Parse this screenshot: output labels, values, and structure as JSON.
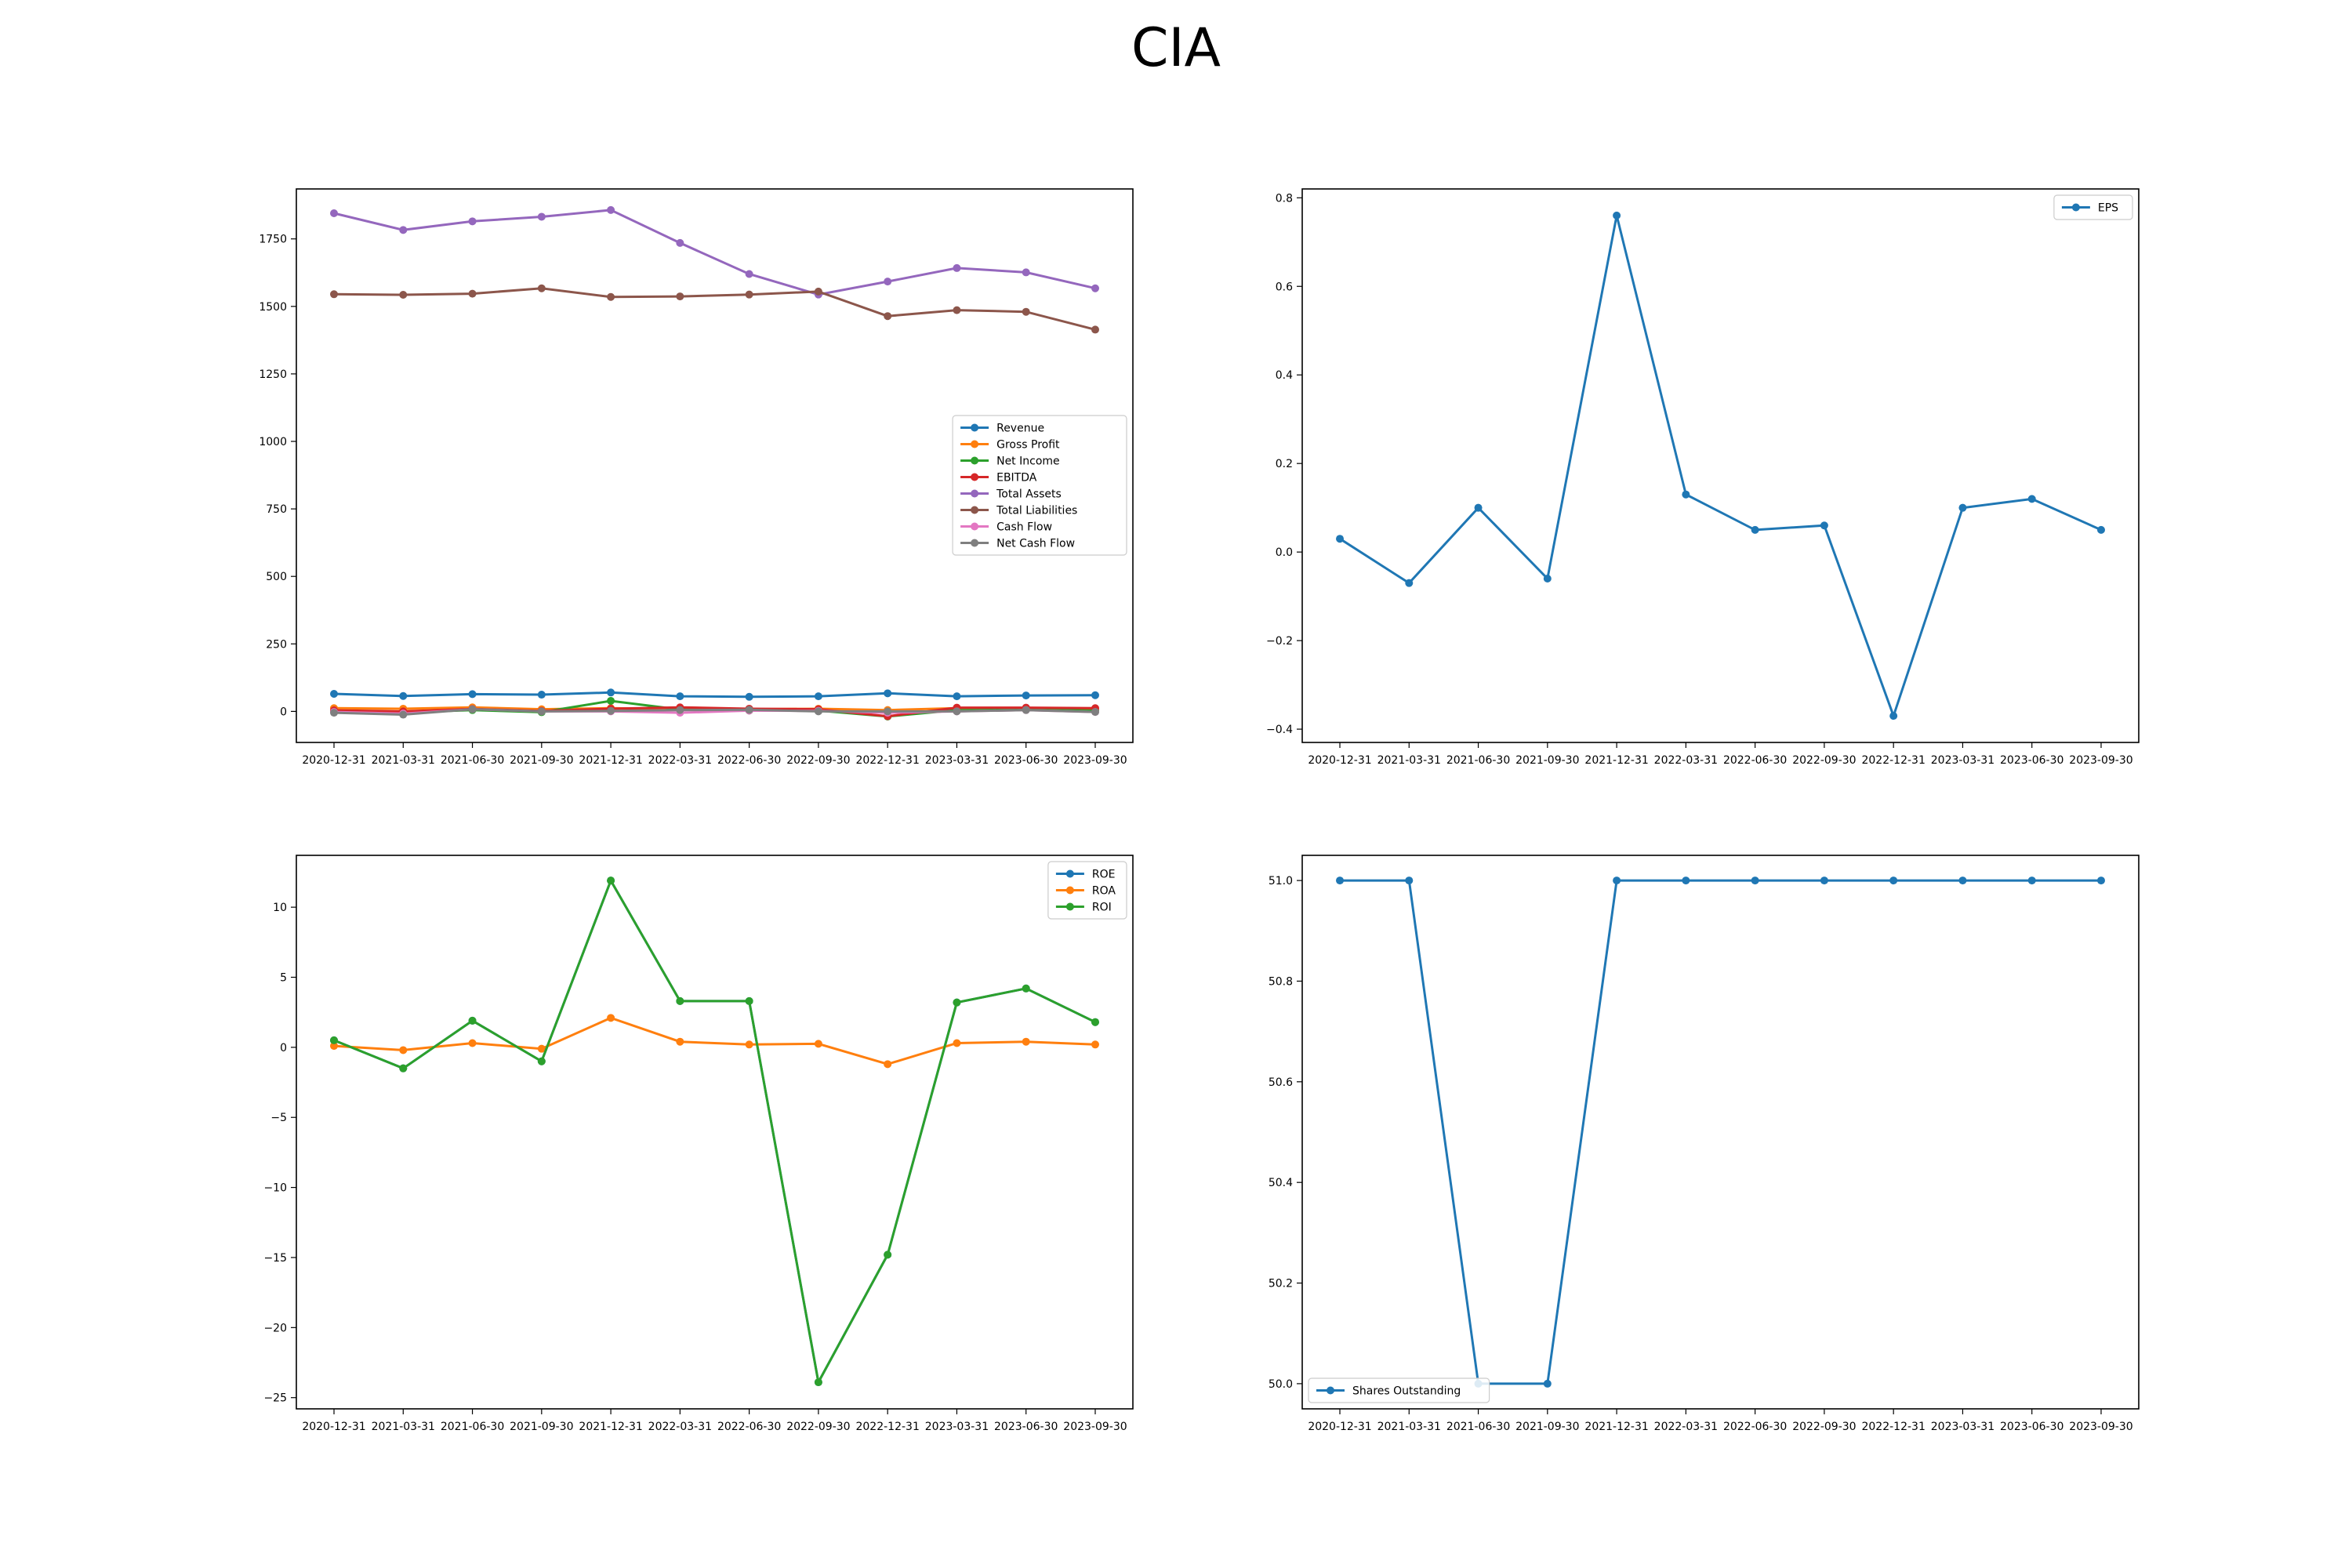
{
  "title": "CIA",
  "chart_data": [
    {
      "type": "line",
      "x": [
        "2020-12-31",
        "2021-03-31",
        "2021-06-30",
        "2021-09-30",
        "2021-12-31",
        "2022-03-31",
        "2022-06-30",
        "2022-09-30",
        "2022-12-31",
        "2023-03-31",
        "2023-06-30",
        "2023-09-30"
      ],
      "ylim": [
        -115,
        1935
      ],
      "yticks": [
        0,
        250,
        500,
        750,
        1000,
        1250,
        1500,
        1750
      ],
      "grid": false,
      "legend": "center-right",
      "series": [
        {
          "name": "Revenue",
          "color": "#1f77b4",
          "values": [
            65,
            57,
            64,
            62,
            70,
            56,
            54,
            56,
            67,
            56,
            59,
            60
          ]
        },
        {
          "name": "Gross Profit",
          "color": "#ff7f0e",
          "values": [
            12,
            10,
            15,
            8,
            12,
            8,
            8,
            10,
            5,
            12,
            10,
            8
          ]
        },
        {
          "name": "Net Income",
          "color": "#2ca02c",
          "values": [
            2,
            -4,
            5,
            -3,
            39,
            7,
            3,
            3,
            -19,
            5,
            6,
            3
          ]
        },
        {
          "name": "EBITDA",
          "color": "#d62728",
          "values": [
            4,
            0,
            9,
            2,
            10,
            15,
            10,
            8,
            -18,
            14,
            14,
            12
          ]
        },
        {
          "name": "Total Assets",
          "color": "#9467bd",
          "values": [
            1845,
            1783,
            1815,
            1832,
            1857,
            1735,
            1620,
            1544,
            1592,
            1642,
            1626,
            1567
          ]
        },
        {
          "name": "Total Liabilities",
          "color": "#8c564b",
          "values": [
            1545,
            1543,
            1547,
            1567,
            1535,
            1537,
            1544,
            1555,
            1464,
            1486,
            1480,
            1414
          ]
        },
        {
          "name": "Cash Flow",
          "color": "#e377c2",
          "values": [
            -2,
            -8,
            8,
            0,
            0,
            -5,
            3,
            2,
            -5,
            0,
            5,
            -2
          ]
        },
        {
          "name": "Net Cash Flow",
          "color": "#7f7f7f",
          "values": [
            -5,
            -12,
            8,
            0,
            2,
            5,
            6,
            0,
            0,
            0,
            5,
            -2
          ]
        }
      ]
    },
    {
      "type": "line",
      "x": [
        "2020-12-31",
        "2021-03-31",
        "2021-06-30",
        "2021-09-30",
        "2021-12-31",
        "2022-03-31",
        "2022-06-30",
        "2022-09-30",
        "2022-12-31",
        "2023-03-31",
        "2023-06-30",
        "2023-09-30"
      ],
      "ylim": [
        -0.43,
        0.82
      ],
      "yticks": [
        -0.4,
        -0.2,
        0.0,
        0.2,
        0.4,
        0.6,
        0.8
      ],
      "ytick_labels": [
        "−0.4",
        "−0.2",
        "0.0",
        "0.2",
        "0.4",
        "0.6",
        "0.8"
      ],
      "grid": false,
      "legend": "top-right",
      "series": [
        {
          "name": "EPS",
          "color": "#1f77b4",
          "values": [
            0.03,
            -0.07,
            0.1,
            -0.06,
            0.76,
            0.13,
            0.05,
            0.06,
            -0.37,
            0.1,
            0.12,
            0.05
          ]
        }
      ]
    },
    {
      "type": "line",
      "x": [
        "2020-12-31",
        "2021-03-31",
        "2021-06-30",
        "2021-09-30",
        "2021-12-31",
        "2022-03-31",
        "2022-06-30",
        "2022-09-30",
        "2022-12-31",
        "2023-03-31",
        "2023-06-30",
        "2023-09-30"
      ],
      "ylim": [
        -25.8,
        13.7
      ],
      "yticks": [
        -25,
        -20,
        -15,
        -10,
        -5,
        0,
        5,
        10
      ],
      "ytick_labels": [
        "−25",
        "−20",
        "−15",
        "−10",
        "−5",
        "0",
        "5",
        "10"
      ],
      "grid": false,
      "legend": "top-right",
      "series": [
        {
          "name": "ROE",
          "color": "#1f77b4",
          "values": [
            0.5,
            -1.5,
            1.9,
            -1.0,
            11.9,
            3.3,
            3.3,
            -23.9,
            -14.8,
            3.2,
            4.2,
            1.8
          ]
        },
        {
          "name": "ROA",
          "color": "#ff7f0e",
          "values": [
            0.1,
            -0.2,
            0.3,
            -0.1,
            2.1,
            0.4,
            0.2,
            0.25,
            -1.2,
            0.3,
            0.4,
            0.2
          ]
        },
        {
          "name": "ROI",
          "color": "#2ca02c",
          "values": [
            0.5,
            -1.5,
            1.9,
            -1.0,
            11.9,
            3.3,
            3.3,
            -23.9,
            -14.8,
            3.2,
            4.2,
            1.8
          ]
        }
      ]
    },
    {
      "type": "line",
      "x": [
        "2020-12-31",
        "2021-03-31",
        "2021-06-30",
        "2021-09-30",
        "2021-12-31",
        "2022-03-31",
        "2022-06-30",
        "2022-09-30",
        "2022-12-31",
        "2023-03-31",
        "2023-06-30",
        "2023-09-30"
      ],
      "ylim": [
        49.95,
        51.05
      ],
      "yticks": [
        50.0,
        50.2,
        50.4,
        50.6,
        50.8,
        51.0
      ],
      "ytick_labels": [
        "50.0",
        "50.2",
        "50.4",
        "50.6",
        "50.8",
        "51.0"
      ],
      "grid": false,
      "legend": "bottom-left",
      "series": [
        {
          "name": "Shares Outstanding",
          "color": "#1f77b4",
          "values": [
            51,
            51,
            50,
            50,
            51,
            51,
            51,
            51,
            51,
            51,
            51,
            51
          ]
        }
      ]
    }
  ]
}
